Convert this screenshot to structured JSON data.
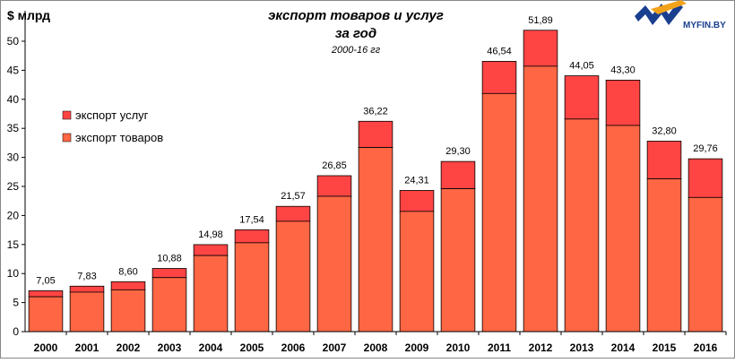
{
  "chart_data": {
    "type": "bar",
    "stacked": true,
    "title": "экспорт товаров и услуг",
    "title_line2": "за год",
    "subtitle": "2000-16 гг",
    "ylabel": "$ млрд",
    "ylim": [
      0,
      50
    ],
    "ytick_step": 5,
    "grid": false,
    "legend": "left-middle",
    "categories": [
      "2000",
      "2001",
      "2002",
      "2003",
      "2004",
      "2005",
      "2006",
      "2007",
      "2008",
      "2009",
      "2010",
      "2011",
      "2012",
      "2013",
      "2014",
      "2015",
      "2016"
    ],
    "series": [
      {
        "name": "экспорт товаров",
        "color": "#ff6644",
        "values": [
          6.0,
          6.8,
          7.2,
          9.3,
          13.1,
          15.3,
          19.0,
          23.3,
          31.7,
          20.7,
          24.6,
          41.0,
          45.7,
          36.6,
          35.5,
          26.3,
          23.1
        ]
      },
      {
        "name": "экспорт услуг",
        "color": "#ff4444",
        "values": [
          1.05,
          1.03,
          1.4,
          1.58,
          1.88,
          2.24,
          2.57,
          3.55,
          4.52,
          3.61,
          4.7,
          5.54,
          6.19,
          7.45,
          7.8,
          6.5,
          6.66
        ]
      }
    ],
    "totals": [
      "7,05",
      "7,83",
      "8,60",
      "10,88",
      "14,98",
      "17,54",
      "21,57",
      "26,85",
      "36,22",
      "24,31",
      "29,30",
      "46,54",
      "51,89",
      "44,05",
      "43,30",
      "32,80",
      "29,76"
    ],
    "total_values": [
      7.05,
      7.83,
      8.6,
      10.88,
      14.98,
      17.54,
      21.57,
      26.85,
      36.22,
      24.31,
      29.3,
      46.54,
      51.89,
      44.05,
      43.3,
      32.8,
      29.76
    ]
  },
  "logo": {
    "text": "MYFIN.BY"
  }
}
